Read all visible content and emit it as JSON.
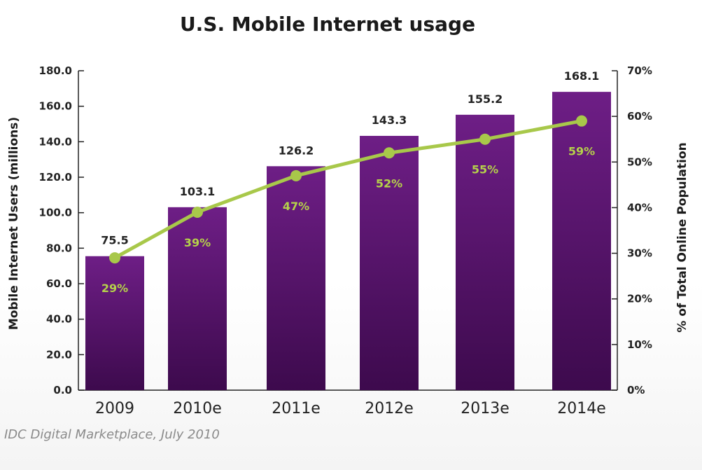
{
  "chart_data": {
    "type": "bar",
    "title": "U.S. Mobile Internet usage",
    "categories": [
      "2009",
      "2010e",
      "2011e",
      "2012e",
      "2013e",
      "2014e"
    ],
    "series": [
      {
        "name": "Mobile Internet Users (millions)",
        "type": "bar",
        "axis": "left",
        "values": [
          75.5,
          103.1,
          126.2,
          143.3,
          155.2,
          168.1
        ],
        "labels": [
          "75.5",
          "103.1",
          "126.2",
          "143.3",
          "155.2",
          "168.1"
        ]
      },
      {
        "name": "% of Total Online Population",
        "type": "line",
        "axis": "right",
        "values": [
          29,
          39,
          47,
          52,
          55,
          59
        ],
        "labels": [
          "29%",
          "39%",
          "47%",
          "52%",
          "55%",
          "59%"
        ]
      }
    ],
    "ylabel": "Mobile Internet Users (millions)",
    "y2label": "% of Total Online Population",
    "ylim": [
      0,
      180
    ],
    "y2lim": [
      0,
      70
    ],
    "yticks": [
      "0.0",
      "20.0",
      "40.0",
      "60.0",
      "80.0",
      "100.0",
      "120.0",
      "140.0",
      "160.0",
      "180.0"
    ],
    "y2ticks": [
      "0%",
      "10%",
      "20%",
      "30%",
      "40%",
      "50%",
      "60%",
      "70%"
    ],
    "grid": false,
    "legend": "none"
  },
  "colors": {
    "bar_top": "#6e1e86",
    "bar_bottom": "#3d0a4d",
    "line": "#a8c84a",
    "marker": "#a8c84a",
    "pct_label": "#b5d24a",
    "axis": "#222222"
  },
  "source": "IDC Digital Marketplace, July 2010"
}
